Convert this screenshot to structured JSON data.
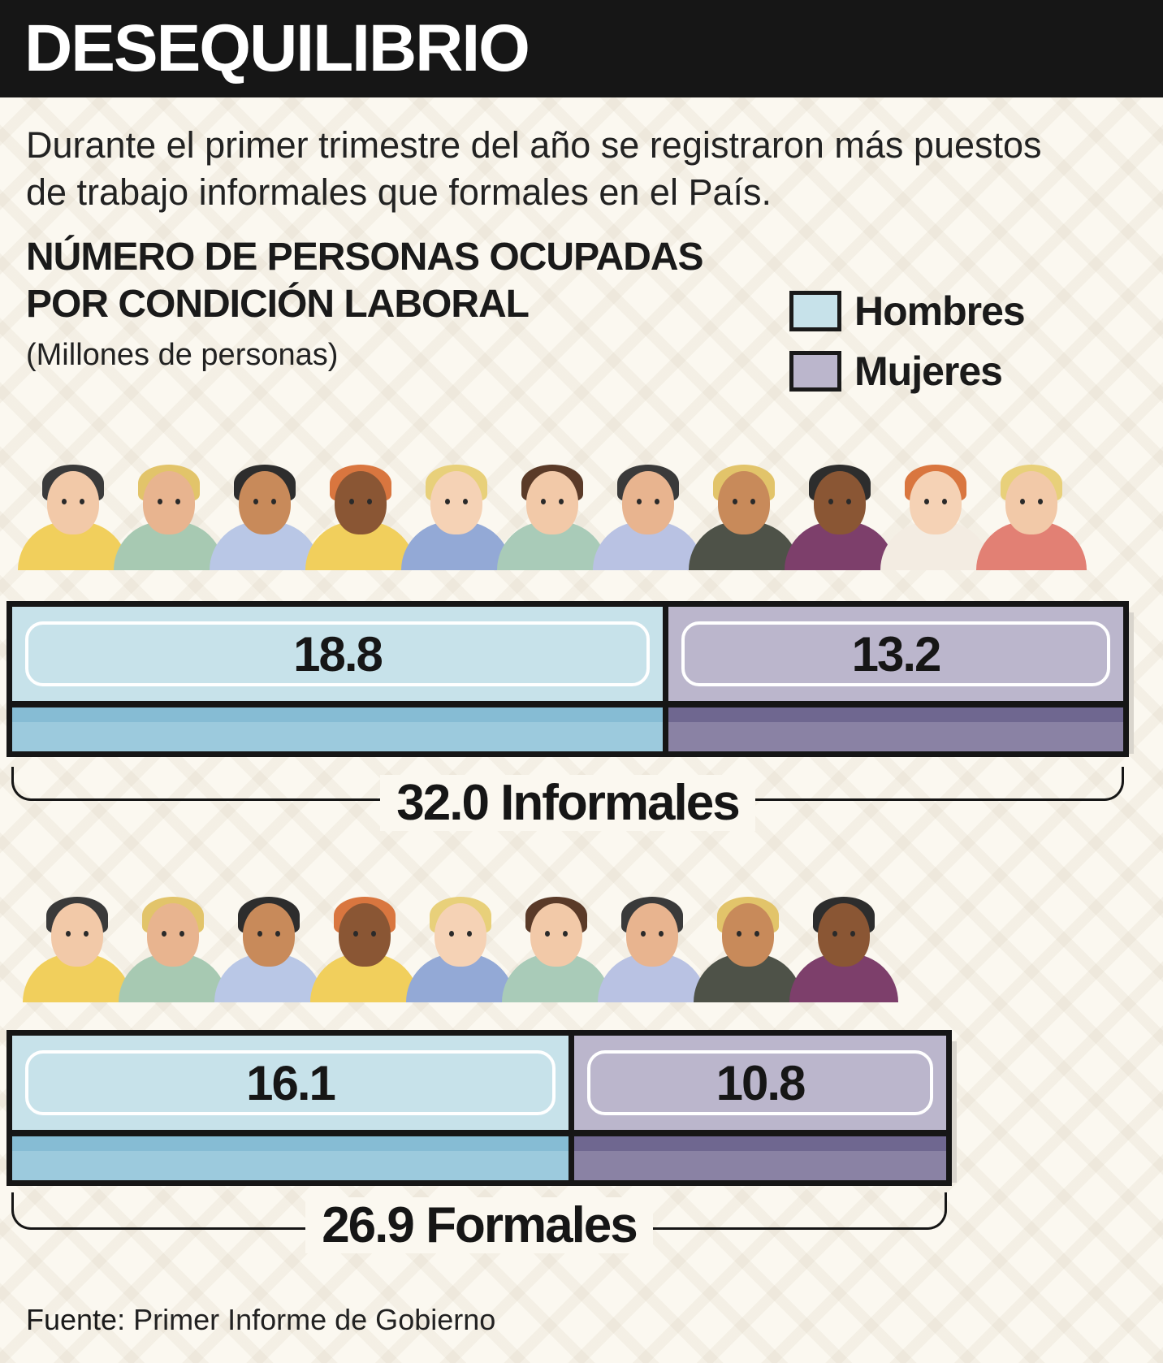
{
  "header": {
    "title": "DESEQUILIBRIO"
  },
  "intro": "Durante el primer trimestre del año se registraron más puestos de trabajo informales que formales en el País.",
  "chart_title": {
    "line1": "NÚMERO DE PERSONAS OCUPADAS",
    "line2": "POR CONDICIÓN LABORAL"
  },
  "units": "(Millones de personas)",
  "legend": [
    {
      "label": "Hombres",
      "color": "#c7e2ea"
    },
    {
      "label": "Mujeres",
      "color": "#bbb6cc"
    }
  ],
  "colors": {
    "hombres_light": "#c7e2ea",
    "hombres_stripe": "#86bcd4",
    "mujeres_light": "#bbb6cc",
    "mujeres_stripe": "#7d7598",
    "frame": "#161616"
  },
  "chart_data": {
    "type": "bar",
    "stacked": true,
    "orientation": "horizontal",
    "categories": [
      "Informales",
      "Formales"
    ],
    "series": [
      {
        "name": "Hombres",
        "values": [
          18.8,
          16.1
        ]
      },
      {
        "name": "Mujeres",
        "values": [
          13.2,
          10.8
        ]
      }
    ],
    "totals": [
      {
        "value": "32.0",
        "label": "32.0 Informales"
      },
      {
        "value": "26.9",
        "label": "26.9 Formales"
      }
    ],
    "value_labels": {
      "informales": {
        "hombres": "18.8",
        "mujeres": "13.2"
      },
      "formales": {
        "hombres": "16.1",
        "mujeres": "10.8"
      }
    }
  },
  "source": {
    "label": "Fuente:",
    "text": " Primer Informe de Gobierno"
  }
}
